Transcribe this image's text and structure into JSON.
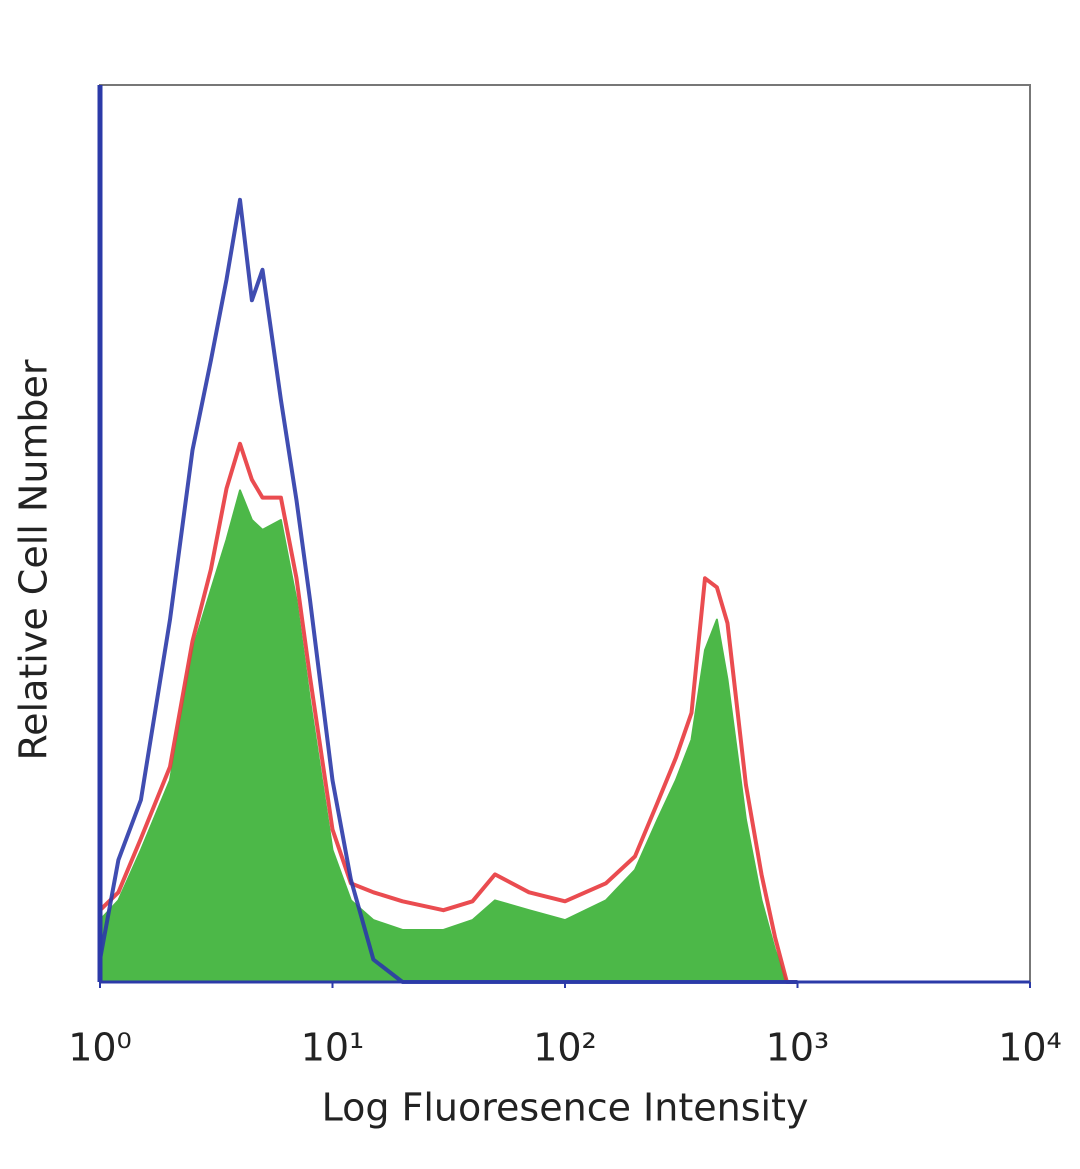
{
  "chart_data": {
    "type": "line",
    "xlabel": "Log Fluoresence Intensity",
    "ylabel": "Relative Cell Number",
    "xscale": "log",
    "xlim": [
      1,
      10000
    ],
    "ylim": [
      0,
      100
    ],
    "xticks": [
      {
        "value": 1,
        "label": "10⁰"
      },
      {
        "value": 10,
        "label": "10¹"
      },
      {
        "value": 100,
        "label": "10²"
      },
      {
        "value": 1000,
        "label": "10³"
      },
      {
        "value": 10000,
        "label": "10⁴"
      }
    ],
    "x": [
      1,
      1.2,
      1.5,
      2,
      2.5,
      3,
      3.5,
      4,
      4.5,
      5,
      6,
      7,
      8,
      10,
      12,
      15,
      20,
      30,
      40,
      50,
      70,
      100,
      150,
      200,
      250,
      300,
      350,
      400,
      450,
      500,
      600,
      700,
      800,
      900,
      1000
    ],
    "series": [
      {
        "color": "#4cb848",
        "fill": true,
        "values": [
          6.9,
          9.1,
          14.7,
          22.5,
          37,
          43.7,
          49.3,
          54.8,
          51.5,
          50.4,
          51.5,
          42.6,
          31.4,
          14.7,
          9.1,
          6.9,
          5.8,
          5.8,
          6.9,
          9.1,
          8,
          6.9,
          9.1,
          12.5,
          18.1,
          22.5,
          27,
          37,
          40.4,
          33.7,
          18.1,
          9.1,
          3.6,
          0,
          0
        ]
      },
      {
        "color": "#e8383d",
        "fill": false,
        "values": [
          8,
          10,
          16,
          24,
          38,
          46,
          55,
          60,
          56,
          54,
          54,
          45,
          34,
          17,
          11,
          10,
          9,
          8,
          9,
          12,
          10,
          9,
          11,
          14,
          20,
          25,
          30,
          45,
          44,
          40,
          22,
          12,
          5,
          0,
          0
        ]
      },
      {
        "color": "#2b3aa8",
        "fill": false,
        "values": [
          2.5,
          13.6,
          20.3,
          40.4,
          59.3,
          69.3,
          78.3,
          87.2,
          76,
          79.4,
          64.9,
          53.7,
          42.6,
          22.5,
          11.4,
          2.5,
          0,
          0,
          0,
          0,
          0,
          0,
          0,
          0,
          0,
          0,
          0,
          0,
          0,
          0,
          0,
          0,
          0,
          0,
          0
        ]
      }
    ]
  }
}
